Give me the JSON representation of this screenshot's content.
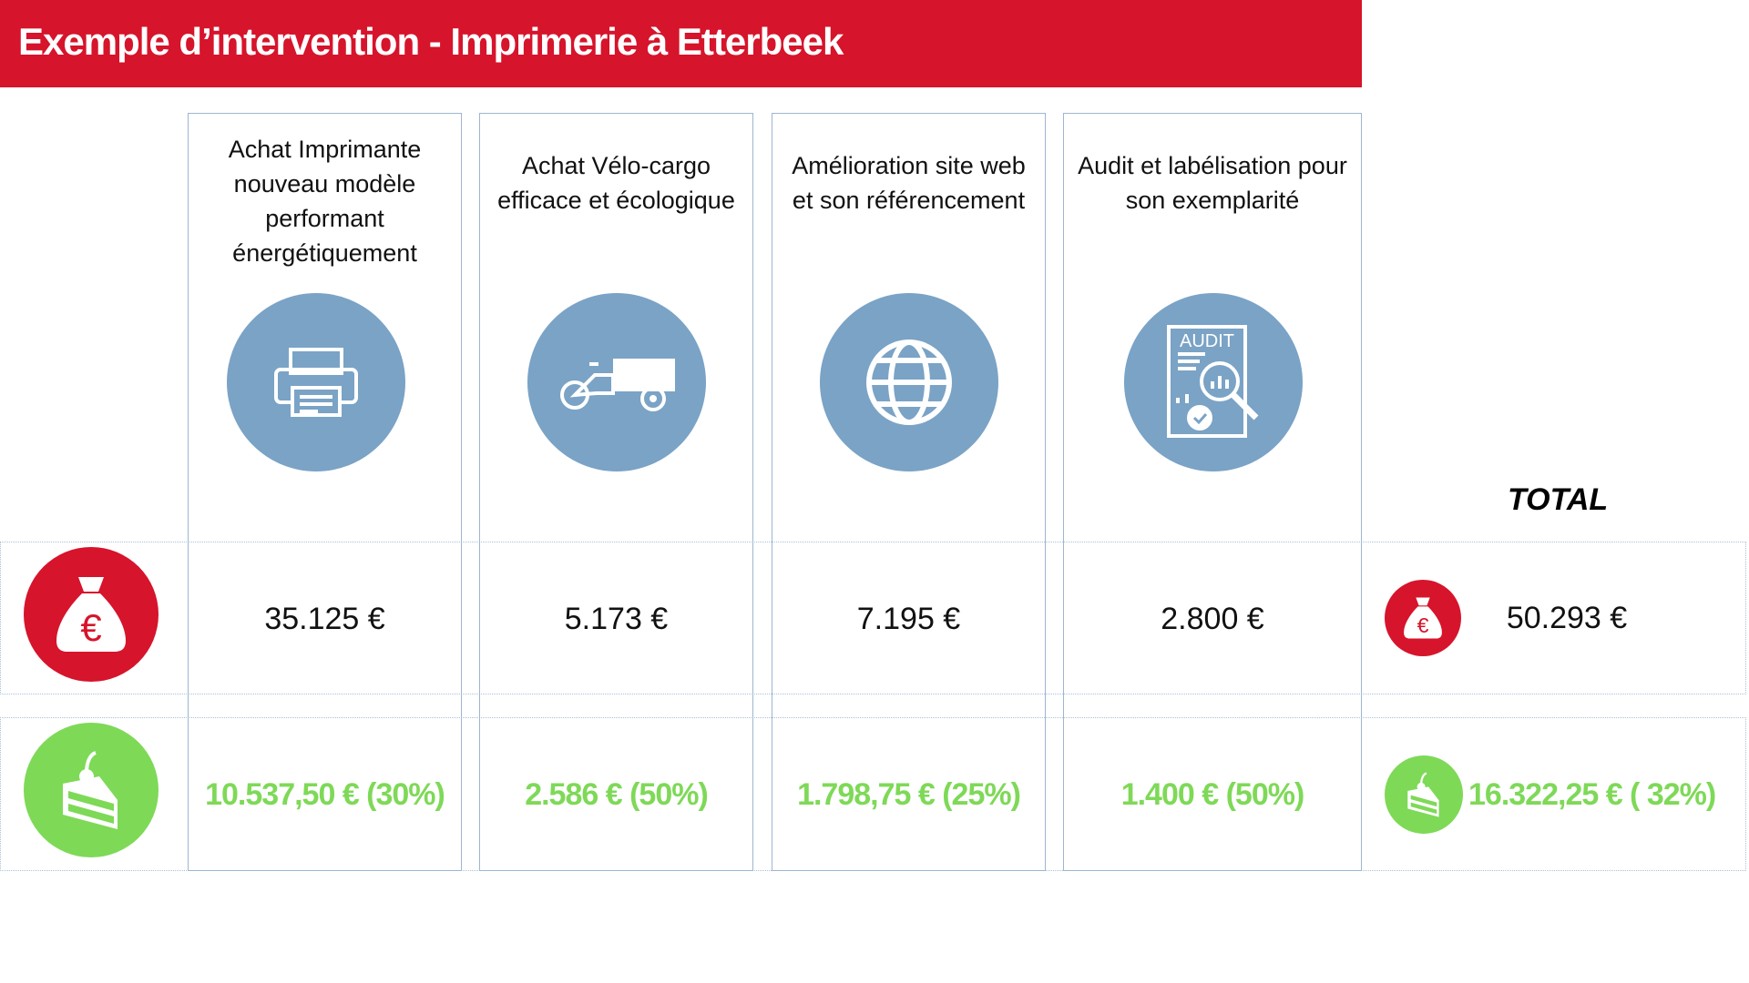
{
  "header": {
    "title": "Exemple d’intervention - Imprimerie à Etterbeek"
  },
  "columns": [
    {
      "title": "Achat Imprimante nouveau modèle performant énergétiquement",
      "icon": "printer-icon",
      "cost": "35.125 €",
      "subsidy": "10.537,50 € (30%)"
    },
    {
      "title": "Achat Vélo-cargo efficace et écologique",
      "icon": "cargo-bike-icon",
      "cost": "5.173 €",
      "subsidy": "2.586 € (50%)"
    },
    {
      "title": "Amélioration site web et son référencement",
      "icon": "globe-icon",
      "cost": "7.195 €",
      "subsidy": "1.798,75 € (25%)"
    },
    {
      "title": "Audit et labélisation pour son exemplarité",
      "icon": "audit-icon",
      "icon_text": "AUDIT",
      "cost": "2.800 €",
      "subsidy": "1.400 € (50%)"
    }
  ],
  "total": {
    "label": "TOTAL",
    "cost": "50.293 €",
    "subsidy": "16.322,25 € ( 32%)"
  },
  "colors": {
    "red": "#d6142b",
    "green": "#7ed957",
    "blue": "#7aa3c6"
  }
}
